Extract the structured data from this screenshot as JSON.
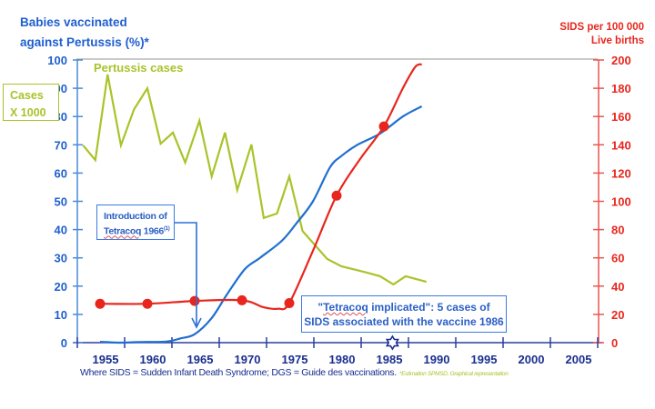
{
  "chart_data": {
    "type": "line",
    "title": "",
    "left_axis": {
      "label_line1": "Babies vaccinated",
      "label_line2_prefix": "against ",
      "label_line2_word": "Pertussis",
      "label_line2_suffix": " (%)*",
      "range": [
        0,
        100
      ],
      "ticks": [
        "0",
        "10",
        "20",
        "30",
        "40",
        "50",
        "60",
        "70",
        "80",
        "90",
        "100"
      ],
      "secondary_label_line1": "Cases",
      "secondary_label_line2": "X 1000"
    },
    "right_axis": {
      "label_line1": "SIDS per 100 000",
      "label_line2": "Live births",
      "range": [
        0,
        200
      ],
      "ticks": [
        "0",
        "20",
        "40",
        "60",
        "80",
        "100",
        "120",
        "140",
        "160",
        "180",
        "200"
      ]
    },
    "x_axis": {
      "range": [
        1950.5,
        2008
      ],
      "tick_labels": [
        "1955",
        "1960",
        "1965",
        "1970",
        "1975",
        "1980",
        "1985",
        "1990",
        "1995",
        "2000",
        "2005"
      ]
    },
    "series": [
      {
        "name": "Pertussis cases",
        "label_word": "Pertussis",
        "label_suffix": " cases",
        "axis": "left",
        "unit": "cases x 1000",
        "color": "#a8c42a",
        "points": [
          [
            1953.2,
            69.8
          ],
          [
            1954.5,
            64.6
          ],
          [
            1955.8,
            94.9
          ],
          [
            1957.2,
            69.8
          ],
          [
            1958.6,
            82.6
          ],
          [
            1960.0,
            90.0
          ],
          [
            1961.4,
            70.4
          ],
          [
            1962.7,
            74.3
          ],
          [
            1964.0,
            63.7
          ],
          [
            1965.5,
            78.5
          ],
          [
            1966.8,
            58.8
          ],
          [
            1968.2,
            74.3
          ],
          [
            1969.5,
            54.0
          ],
          [
            1971.0,
            70.1
          ],
          [
            1972.3,
            44.1
          ],
          [
            1973.7,
            45.7
          ],
          [
            1975.0,
            58.8
          ],
          [
            1976.4,
            39.5
          ],
          [
            1979.0,
            29.6
          ],
          [
            1980.5,
            27.0
          ],
          [
            1983.2,
            24.8
          ],
          [
            1984.6,
            23.5
          ],
          [
            1986.0,
            20.6
          ],
          [
            1987.3,
            23.5
          ],
          [
            1989.5,
            21.5
          ]
        ]
      },
      {
        "name": "Babies vaccinated against Pertussis (%)",
        "axis": "left",
        "color": "#1f6fd0",
        "points": [
          [
            1955,
            0.3
          ],
          [
            1957,
            0
          ],
          [
            1959,
            0.2
          ],
          [
            1962,
            0.4
          ],
          [
            1963.5,
            1.5
          ],
          [
            1965,
            3
          ],
          [
            1966.8,
            8.7
          ],
          [
            1968.4,
            17
          ],
          [
            1970.3,
            26
          ],
          [
            1971.9,
            30
          ],
          [
            1974.2,
            36
          ],
          [
            1975.7,
            42
          ],
          [
            1977.5,
            50
          ],
          [
            1979.3,
            62
          ],
          [
            1980.5,
            66
          ],
          [
            1982.2,
            70
          ],
          [
            1984.6,
            74
          ],
          [
            1987.0,
            80
          ],
          [
            1989.0,
            83.6
          ]
        ]
      },
      {
        "name": "SIDS per 100 000 live births",
        "axis": "right",
        "color": "#e8261d",
        "points": [
          [
            1955,
            27.5
          ],
          [
            1960,
            27.5
          ],
          [
            1965,
            29.5
          ],
          [
            1970,
            30
          ],
          [
            1972.3,
            25
          ],
          [
            1973.8,
            24
          ],
          [
            1975,
            28
          ],
          [
            1977.5,
            65
          ],
          [
            1980,
            104
          ],
          [
            1982.5,
            130
          ],
          [
            1985,
            153
          ],
          [
            1987,
            180
          ],
          [
            1988.3,
            195
          ],
          [
            1989,
            197
          ]
        ],
        "markers_at": [
          1955,
          1960,
          1965,
          1970,
          1975,
          1980,
          1985
        ]
      }
    ],
    "annotations": [
      {
        "id": "introduction",
        "line1": "Introduction of",
        "line2_word": "Tetracoq",
        "line2_suffix": " 1966",
        "superscript": "(1)",
        "arrow_to_year": 1965
      },
      {
        "id": "implicated",
        "line1_prefix": "\"",
        "line1_word": "Tetracoq",
        "line1_suffix": " implicated\": 5 cases of",
        "line2": "SIDS associated with the vaccine 1986",
        "marker_year": 1986,
        "marker_icon": "star-burst-icon"
      }
    ],
    "footnote": "Where SIDS = Sudden Infant Death Syndrome; DGS = Guide des vaccinations.",
    "footnote_note": "*Estimation SPMSD, Graphical representation",
    "grid": false,
    "legend": "none"
  }
}
